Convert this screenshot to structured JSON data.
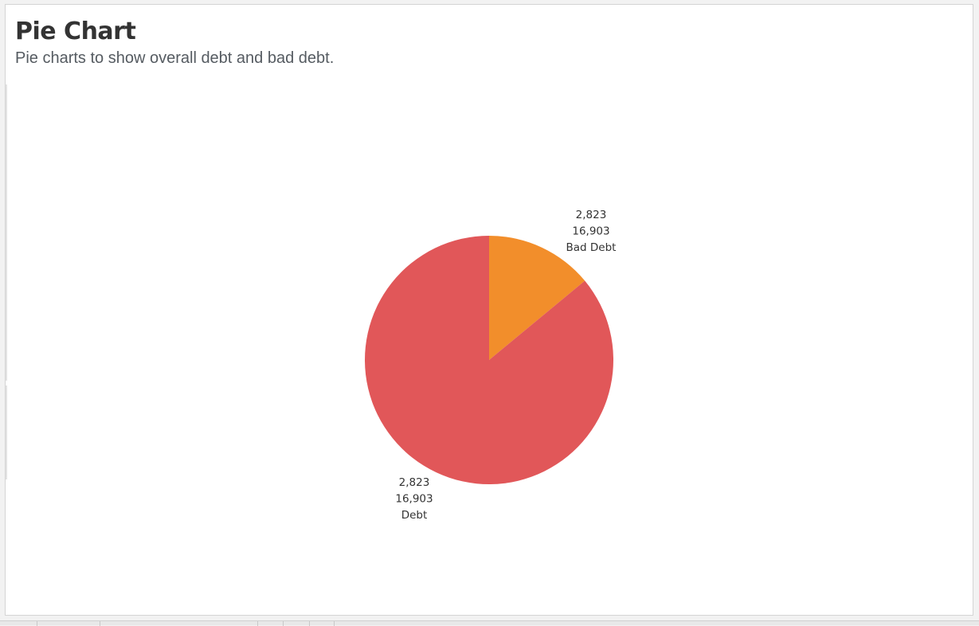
{
  "header": {
    "title": "Pie Chart",
    "subtitle": "Pie charts to show overall debt and bad debt."
  },
  "chart_data": {
    "type": "pie",
    "title": "Pie Chart",
    "subtitle": "Pie charts to show overall debt and bad debt.",
    "slices": [
      {
        "name": "Bad Debt",
        "share": 0.14,
        "color": "#f28e2b",
        "label_lines": [
          "2,823",
          "16,903",
          "Bad Debt"
        ]
      },
      {
        "name": "Debt",
        "share": 0.86,
        "color": "#e15759",
        "label_lines": [
          "2,823",
          "16,903",
          "Debt"
        ]
      }
    ]
  }
}
